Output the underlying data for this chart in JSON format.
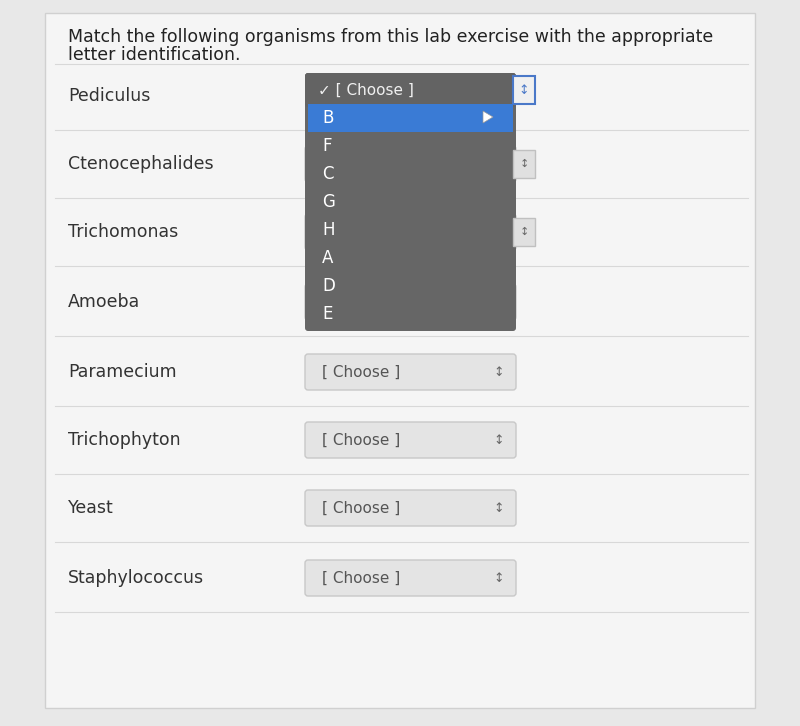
{
  "title_line1": "Match the following organisms from this lab exercise with the appropriate",
  "title_line2": "letter identification.",
  "bg_color": "#e8e8e8",
  "panel_color": "#f5f5f5",
  "panel_border": "#d0d0d0",
  "rows": [
    "Pediculus",
    "Ctenocephalides",
    "Trichomonas",
    "Amoeba",
    "Paramecium",
    "Trichophyton",
    "Yeast",
    "Staphylococcus"
  ],
  "dropdown_items": [
    "✓ [ Choose ]",
    "B",
    "F",
    "C",
    "G",
    "H",
    "A",
    "D",
    "E"
  ],
  "dropdown_highlighted_idx": 1,
  "dropdown_bg": "#666666",
  "dropdown_highlight_color": "#3a7bd5",
  "dropdown_text_color": "#ffffff",
  "dropdown_header_bg": "#636363",
  "dropdown_header_text": "#f0f0f0",
  "choose_box_bg": "#e4e4e4",
  "choose_box_border": "#c8c8c8",
  "choose_box_bg2": "#ebebeb",
  "divider_color": "#d8d8d8",
  "label_color": "#333333",
  "scrollbar_bg": "#4a78c8",
  "scrollbar_small_bg": "#e0e0e0",
  "label_font_size": 12.5,
  "title_font_size": 12.5
}
